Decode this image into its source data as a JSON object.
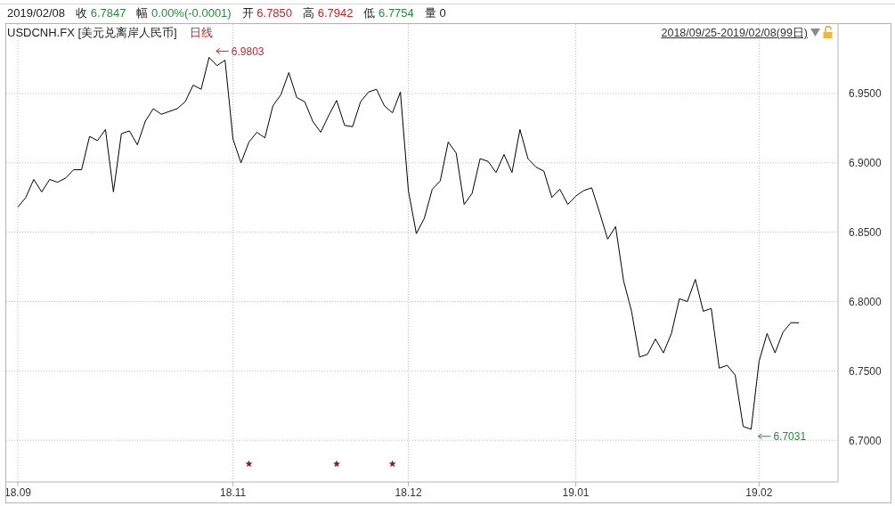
{
  "chart_data": {
    "type": "line",
    "title": "USDCNH.FX [美元兑离岸人民币]",
    "subtitle": "日线",
    "annotations": [
      "2019/02/08",
      "收 6.7847",
      "幅 0.00%(-0.0001)",
      "开 6.7850",
      "高 6.7942",
      "低 6.7754",
      "量 0",
      "2018/09/25-2019/02/08(99日)",
      "6.9803",
      "6.7031"
    ],
    "categories": [
      "18.09",
      null,
      null,
      null,
      null,
      null,
      null,
      null,
      null,
      null,
      null,
      null,
      null,
      null,
      null,
      null,
      null,
      null,
      null,
      null,
      null,
      null,
      null,
      null,
      null,
      null,
      null,
      "18.11",
      null,
      null,
      null,
      null,
      null,
      null,
      null,
      null,
      null,
      null,
      null,
      null,
      null,
      null,
      null,
      null,
      null,
      null,
      null,
      null,
      null,
      "18.12",
      null,
      null,
      null,
      null,
      null,
      null,
      null,
      null,
      null,
      null,
      null,
      null,
      null,
      null,
      null,
      null,
      null,
      null,
      null,
      null,
      "19.01",
      null,
      null,
      null,
      null,
      null,
      null,
      null,
      null,
      null,
      null,
      null,
      null,
      null,
      null,
      null,
      null,
      null,
      null,
      null,
      null,
      null,
      null,
      "19.02",
      null,
      null,
      null,
      null,
      null
    ],
    "series": [
      {
        "color": "#000000",
        "values": [
          6.868,
          6.875,
          6.888,
          6.879,
          6.888,
          6.886,
          6.889,
          6.895,
          6.895,
          6.919,
          6.916,
          6.924,
          6.879,
          6.921,
          6.923,
          6.913,
          6.93,
          6.939,
          6.935,
          6.937,
          6.939,
          6.944,
          6.956,
          6.953,
          6.976,
          6.97,
          6.974,
          6.917,
          6.9,
          6.915,
          6.922,
          6.918,
          6.941,
          6.949,
          6.965,
          6.947,
          6.944,
          6.93,
          6.922,
          6.934,
          6.945,
          6.927,
          6.926,
          6.944,
          6.951,
          6.953,
          6.941,
          6.936,
          6.951,
          6.88,
          6.849,
          6.86,
          6.881,
          6.887,
          6.915,
          6.907,
          6.87,
          6.878,
          6.903,
          6.901,
          6.893,
          6.906,
          6.893,
          6.924,
          6.903,
          6.897,
          6.894,
          6.875,
          6.881,
          6.87,
          6.876,
          6.88,
          6.882,
          6.864,
          6.845,
          6.854,
          6.815,
          6.793,
          6.76,
          6.762,
          6.773,
          6.763,
          6.777,
          6.802,
          6.8,
          6.816,
          6.793,
          6.795,
          6.752,
          6.754,
          6.747,
          6.71,
          6.708,
          6.757,
          6.777,
          6.763,
          6.778,
          6.7848,
          6.7847
        ]
      },
      {
        "type": "scatter",
        "color": "#8b1a1a",
        "marker": "star",
        "values": [
          null,
          null,
          null,
          null,
          null,
          null,
          null,
          null,
          null,
          null,
          null,
          null,
          null,
          null,
          null,
          null,
          null,
          null,
          null,
          null,
          null,
          null,
          null,
          null,
          null,
          null,
          null,
          null,
          null,
          6.683,
          null,
          null,
          null,
          null,
          null,
          null,
          null,
          null,
          null,
          null,
          6.683,
          null,
          null,
          null,
          null,
          null,
          null,
          6.683,
          null,
          null,
          null,
          null,
          null,
          null,
          null,
          null,
          null,
          null,
          null,
          null,
          null,
          null,
          null,
          null,
          null,
          null,
          null,
          null,
          null,
          null,
          null,
          null,
          null,
          null,
          null,
          null,
          null,
          null,
          null,
          null,
          null,
          null,
          null,
          null,
          null,
          null,
          null,
          null,
          null,
          null,
          null,
          null,
          null,
          null,
          null,
          null,
          null,
          null,
          null
        ]
      }
    ],
    "ylim": [
      6.67,
      7.0
    ],
    "yticks": [
      {
        "value": 6.7,
        "label": "6.7000"
      },
      {
        "value": 6.75,
        "label": "6.7500"
      },
      {
        "value": 6.8,
        "label": "6.8000"
      },
      {
        "value": 6.85,
        "label": "6.8500"
      },
      {
        "value": 6.9,
        "label": "6.9000"
      },
      {
        "value": 6.95,
        "label": "6.9500"
      }
    ],
    "grid": true
  }
}
